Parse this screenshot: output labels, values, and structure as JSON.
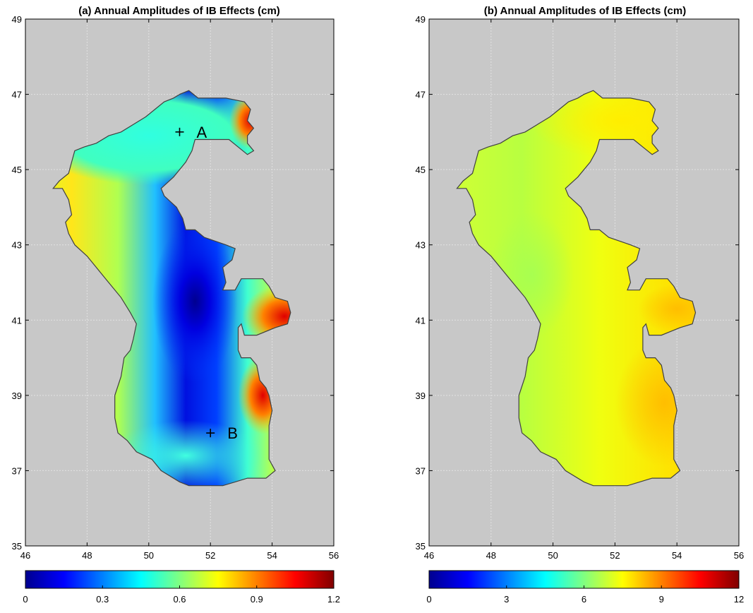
{
  "panels": [
    {
      "id": "a",
      "title": "(a) Annual Amplitudes of IB Effects (cm)",
      "x_ticks": [
        "46",
        "48",
        "50",
        "52",
        "54",
        "56"
      ],
      "y_ticks": [
        "35",
        "37",
        "39",
        "41",
        "43",
        "45",
        "47",
        "49"
      ],
      "colorbar_ticks": [
        "0",
        "0.3",
        "0.6",
        "0.9",
        "1.2"
      ],
      "colorbar_range": [
        0,
        1.2
      ],
      "colormap": "jet",
      "markers": [
        {
          "label": "A",
          "lon": 51.0,
          "lat": 46.0
        },
        {
          "label": "B",
          "lon": 52.0,
          "lat": 38.0
        }
      ]
    },
    {
      "id": "b",
      "title": "(b) Annual Amplitudes of IB Effects (cm)",
      "x_ticks": [
        "46",
        "48",
        "50",
        "52",
        "54",
        "56"
      ],
      "y_ticks": [
        "35",
        "37",
        "39",
        "41",
        "43",
        "45",
        "47",
        "49"
      ],
      "colorbar_ticks": [
        "0",
        "3",
        "6",
        "9",
        "12"
      ],
      "colorbar_range": [
        0,
        12
      ],
      "colormap": "jet",
      "markers": []
    }
  ],
  "colors": {
    "background": "#c8c8c8",
    "grid": "#e2e2e2",
    "jet": [
      "#00008f",
      "#0000ff",
      "#0080ff",
      "#00ffff",
      "#80ff80",
      "#ffff00",
      "#ff8000",
      "#ff0000",
      "#800000"
    ]
  },
  "map": {
    "lon_range": [
      46,
      56
    ],
    "lat_range": [
      35,
      49
    ],
    "region": "Caspian Sea",
    "outline_lonlat": [
      [
        51.0,
        47.0
      ],
      [
        51.3,
        47.1
      ],
      [
        51.6,
        46.9
      ],
      [
        52.5,
        46.9
      ],
      [
        53.1,
        46.8
      ],
      [
        53.3,
        46.6
      ],
      [
        53.2,
        46.3
      ],
      [
        53.4,
        46.1
      ],
      [
        53.2,
        45.9
      ],
      [
        53.2,
        45.7
      ],
      [
        53.4,
        45.5
      ],
      [
        53.2,
        45.4
      ],
      [
        52.9,
        45.6
      ],
      [
        52.6,
        45.8
      ],
      [
        51.5,
        45.8
      ],
      [
        51.4,
        45.5
      ],
      [
        51.2,
        45.2
      ],
      [
        50.8,
        44.8
      ],
      [
        50.4,
        44.5
      ],
      [
        50.5,
        44.3
      ],
      [
        50.9,
        44.0
      ],
      [
        51.1,
        43.7
      ],
      [
        51.2,
        43.4
      ],
      [
        51.5,
        43.4
      ],
      [
        51.8,
        43.2
      ],
      [
        52.5,
        43.0
      ],
      [
        52.8,
        42.9
      ],
      [
        52.7,
        42.6
      ],
      [
        52.4,
        42.4
      ],
      [
        52.5,
        42.0
      ],
      [
        52.4,
        41.8
      ],
      [
        52.8,
        41.8
      ],
      [
        53.0,
        42.1
      ],
      [
        53.7,
        42.1
      ],
      [
        53.9,
        41.9
      ],
      [
        54.1,
        41.6
      ],
      [
        54.5,
        41.5
      ],
      [
        54.6,
        41.2
      ],
      [
        54.5,
        40.9
      ],
      [
        54.1,
        40.8
      ],
      [
        53.5,
        40.6
      ],
      [
        53.1,
        40.6
      ],
      [
        53.0,
        40.9
      ],
      [
        52.9,
        40.8
      ],
      [
        52.9,
        40.2
      ],
      [
        53.0,
        40.0
      ],
      [
        53.3,
        40.0
      ],
      [
        53.5,
        39.8
      ],
      [
        53.6,
        39.4
      ],
      [
        53.8,
        39.2
      ],
      [
        53.9,
        39.0
      ],
      [
        54.0,
        38.6
      ],
      [
        53.9,
        38.2
      ],
      [
        53.9,
        37.7
      ],
      [
        53.9,
        37.3
      ],
      [
        54.1,
        37.0
      ],
      [
        53.8,
        36.8
      ],
      [
        53.2,
        36.8
      ],
      [
        52.8,
        36.7
      ],
      [
        52.4,
        36.6
      ],
      [
        51.3,
        36.6
      ],
      [
        51.0,
        36.7
      ],
      [
        50.4,
        37.0
      ],
      [
        50.1,
        37.3
      ],
      [
        49.6,
        37.5
      ],
      [
        49.3,
        37.8
      ],
      [
        49.0,
        38.0
      ],
      [
        48.9,
        38.4
      ],
      [
        48.9,
        39.0
      ],
      [
        49.1,
        39.5
      ],
      [
        49.2,
        40.0
      ],
      [
        49.4,
        40.2
      ],
      [
        49.5,
        40.5
      ],
      [
        49.6,
        40.9
      ],
      [
        49.4,
        41.2
      ],
      [
        49.1,
        41.6
      ],
      [
        48.6,
        42.1
      ],
      [
        48.0,
        42.7
      ],
      [
        47.6,
        43.0
      ],
      [
        47.4,
        43.3
      ],
      [
        47.3,
        43.6
      ],
      [
        47.5,
        43.8
      ],
      [
        47.4,
        44.2
      ],
      [
        47.2,
        44.5
      ],
      [
        46.9,
        44.5
      ],
      [
        47.1,
        44.7
      ],
      [
        47.4,
        44.9
      ],
      [
        47.5,
        45.2
      ],
      [
        47.6,
        45.5
      ],
      [
        47.9,
        45.6
      ],
      [
        48.3,
        45.7
      ],
      [
        48.7,
        45.9
      ],
      [
        49.1,
        46.0
      ],
      [
        49.5,
        46.2
      ],
      [
        49.9,
        46.4
      ],
      [
        50.2,
        46.6
      ],
      [
        50.5,
        46.8
      ],
      [
        50.8,
        46.9
      ]
    ]
  }
}
